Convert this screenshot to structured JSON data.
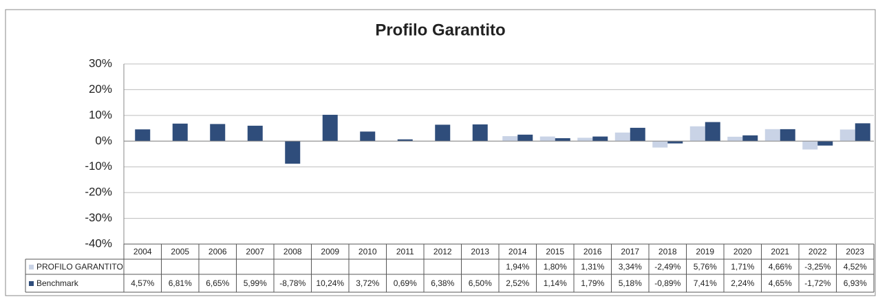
{
  "chart_data": {
    "type": "bar",
    "title": "Profilo Garantito",
    "categories": [
      "2004",
      "2005",
      "2006",
      "2007",
      "2008",
      "2009",
      "2010",
      "2011",
      "2012",
      "2013",
      "2014",
      "2015",
      "2016",
      "2017",
      "2018",
      "2019",
      "2020",
      "2021",
      "2022",
      "2023"
    ],
    "series": [
      {
        "name": "PROFILO GARANTITO",
        "color": "#c9d3e6",
        "values": [
          null,
          null,
          null,
          null,
          null,
          null,
          null,
          null,
          null,
          null,
          1.94,
          1.8,
          1.31,
          3.34,
          -2.49,
          5.76,
          1.71,
          4.66,
          -3.25,
          4.52
        ],
        "value_labels": [
          null,
          null,
          null,
          null,
          null,
          null,
          null,
          null,
          null,
          null,
          "1,94%",
          "1,80%",
          "1,31%",
          "3,34%",
          "-2,49%",
          "5,76%",
          "1,71%",
          "4,66%",
          "-3,25%",
          "4,52%"
        ]
      },
      {
        "name": "Benchmark",
        "color": "#2f4d7b",
        "values": [
          4.57,
          6.81,
          6.65,
          5.99,
          -8.78,
          10.24,
          3.72,
          0.69,
          6.38,
          6.5,
          2.52,
          1.14,
          1.79,
          5.18,
          -0.89,
          7.41,
          2.24,
          4.65,
          -1.72,
          6.93
        ],
        "value_labels": [
          "4,57%",
          "6,81%",
          "6,65%",
          "5,99%",
          "-8,78%",
          "10,24%",
          "3,72%",
          "0,69%",
          "6,38%",
          "6,50%",
          "2,52%",
          "1,14%",
          "1,79%",
          "5,18%",
          "-0,89%",
          "7,41%",
          "2,24%",
          "4,65%",
          "-1,72%",
          "6,93%"
        ]
      }
    ],
    "ylim": [
      -40,
      30
    ],
    "yticks": [
      {
        "value": -40,
        "label": "-40%"
      },
      {
        "value": -30,
        "label": "-30%"
      },
      {
        "value": -20,
        "label": "-20%"
      },
      {
        "value": -10,
        "label": "-10%"
      },
      {
        "value": 0,
        "label": "0%"
      },
      {
        "value": 10,
        "label": "10%"
      },
      {
        "value": 20,
        "label": "20%"
      },
      {
        "value": 30,
        "label": "30%"
      }
    ],
    "grid": true
  }
}
